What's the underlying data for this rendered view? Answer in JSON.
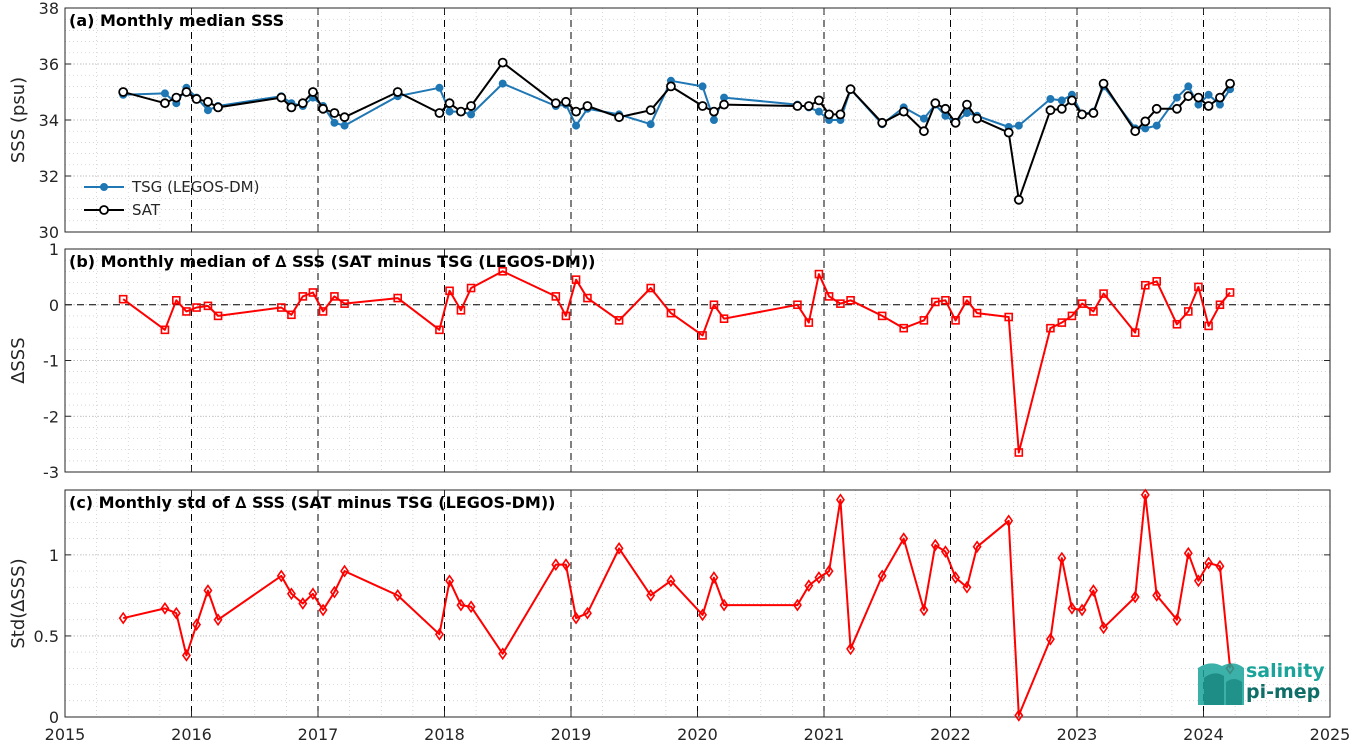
{
  "x_axis": {
    "ticks": [
      "2015",
      "2016",
      "2017",
      "2018",
      "2019",
      "2020",
      "2021",
      "2022",
      "2023",
      "2024",
      "2025"
    ],
    "xlim": [
      2015,
      2025
    ]
  },
  "logo": {
    "line1": "salinity",
    "line2": "pi-mep",
    "color": "#1aa39a"
  },
  "colors": {
    "tsg": "#1f77b4",
    "sat": "#000000",
    "delta": "#ff0000"
  },
  "chart_data": [
    {
      "id": "a",
      "type": "line",
      "title": "(a) Monthly median SSS",
      "ylabel": "SSS (psu)",
      "ylim": [
        30,
        38
      ],
      "yticks": [
        30,
        32,
        34,
        36,
        38
      ],
      "grid": true,
      "legend": {
        "position": "bottom-left",
        "entries": [
          "TSG (LEGOS-DM)",
          "SAT"
        ]
      },
      "series": [
        {
          "name": "TSG (LEGOS-DM)",
          "marker": "dot",
          "x": [
            2015.46,
            2015.79,
            2015.88,
            2015.96,
            2016.04,
            2016.13,
            2016.21,
            2016.71,
            2016.79,
            2016.88,
            2016.96,
            2017.04,
            2017.13,
            2017.21,
            2017.63,
            2017.96,
            2018.04,
            2018.13,
            2018.21,
            2018.46,
            2018.88,
            2018.96,
            2019.04,
            2019.13,
            2019.38,
            2019.63,
            2019.79,
            2020.04,
            2020.13,
            2020.21,
            2020.79,
            2020.88,
            2020.96,
            2021.04,
            2021.13,
            2021.21,
            2021.46,
            2021.63,
            2021.79,
            2021.88,
            2021.96,
            2022.04,
            2022.13,
            2022.21,
            2022.46,
            2022.54,
            2022.79,
            2022.88,
            2022.96,
            2023.04,
            2023.13,
            2023.21,
            2023.46,
            2023.54,
            2023.63,
            2023.79,
            2023.88,
            2023.96,
            2024.04,
            2024.13,
            2024.21
          ],
          "y": [
            34.9,
            34.95,
            34.6,
            35.15,
            34.8,
            34.35,
            34.5,
            34.85,
            34.6,
            34.5,
            34.8,
            34.5,
            33.9,
            33.8,
            34.85,
            35.15,
            34.3,
            34.3,
            34.2,
            35.3,
            34.5,
            34.55,
            33.8,
            34.4,
            34.2,
            33.85,
            35.4,
            35.2,
            34.0,
            34.8,
            34.55,
            34.45,
            34.3,
            34.0,
            34.0,
            35.1,
            33.85,
            34.45,
            34.05,
            34.55,
            34.15,
            33.9,
            34.25,
            34.15,
            33.75,
            33.8,
            34.75,
            34.7,
            34.9,
            34.2,
            34.3,
            35.2,
            33.7,
            33.7,
            33.8,
            34.8,
            35.2,
            34.55,
            34.9,
            34.55,
            35.1
          ]
        },
        {
          "name": "SAT",
          "marker": "circle",
          "x": [
            2015.46,
            2015.79,
            2015.88,
            2015.96,
            2016.04,
            2016.13,
            2016.21,
            2016.71,
            2016.79,
            2016.88,
            2016.96,
            2017.04,
            2017.13,
            2017.21,
            2017.63,
            2017.96,
            2018.04,
            2018.13,
            2018.21,
            2018.46,
            2018.88,
            2018.96,
            2019.04,
            2019.13,
            2019.38,
            2019.63,
            2019.79,
            2020.04,
            2020.13,
            2020.21,
            2020.79,
            2020.88,
            2020.96,
            2021.04,
            2021.13,
            2021.21,
            2021.46,
            2021.63,
            2021.79,
            2021.88,
            2021.96,
            2022.04,
            2022.13,
            2022.21,
            2022.46,
            2022.54,
            2022.79,
            2022.88,
            2022.96,
            2023.04,
            2023.13,
            2023.21,
            2023.46,
            2023.54,
            2023.63,
            2023.79,
            2023.88,
            2023.96,
            2024.04,
            2024.13,
            2024.21
          ],
          "y": [
            35.0,
            34.6,
            34.8,
            35.0,
            34.75,
            34.65,
            34.45,
            34.8,
            34.45,
            34.6,
            35.0,
            34.4,
            34.25,
            34.1,
            35.0,
            34.25,
            34.6,
            34.3,
            34.5,
            36.05,
            34.6,
            34.65,
            34.3,
            34.5,
            34.1,
            34.35,
            35.2,
            34.5,
            34.3,
            34.55,
            34.5,
            34.5,
            34.7,
            34.2,
            34.2,
            35.1,
            33.9,
            34.3,
            33.6,
            34.6,
            34.4,
            33.9,
            34.55,
            34.05,
            33.55,
            31.15,
            34.35,
            34.4,
            34.7,
            34.2,
            34.25,
            35.3,
            33.6,
            33.95,
            34.4,
            34.4,
            34.85,
            34.8,
            34.5,
            34.8,
            35.3
          ]
        }
      ]
    },
    {
      "id": "b",
      "type": "line",
      "title": "(b) Monthly median of ∆ SSS (SAT minus TSG (LEGOS-DM))",
      "ylabel": "∆SSS",
      "ylim": [
        -3,
        1
      ],
      "yticks": [
        -3,
        -2,
        -1,
        0,
        1
      ],
      "grid": true,
      "zero_line": true,
      "series": [
        {
          "marker": "square",
          "x": [
            2015.46,
            2015.79,
            2015.88,
            2015.96,
            2016.04,
            2016.13,
            2016.21,
            2016.71,
            2016.79,
            2016.88,
            2016.96,
            2017.04,
            2017.13,
            2017.21,
            2017.63,
            2017.96,
            2018.04,
            2018.13,
            2018.21,
            2018.46,
            2018.88,
            2018.96,
            2019.04,
            2019.13,
            2019.38,
            2019.63,
            2019.79,
            2020.04,
            2020.13,
            2020.21,
            2020.79,
            2020.88,
            2020.96,
            2021.04,
            2021.13,
            2021.21,
            2021.46,
            2021.63,
            2021.79,
            2021.88,
            2021.96,
            2022.04,
            2022.13,
            2022.21,
            2022.46,
            2022.54,
            2022.79,
            2022.88,
            2022.96,
            2023.04,
            2023.13,
            2023.21,
            2023.46,
            2023.54,
            2023.63,
            2023.79,
            2023.88,
            2023.96,
            2024.04,
            2024.13,
            2024.21
          ],
          "y": [
            0.1,
            -0.45,
            0.08,
            -0.12,
            -0.05,
            -0.02,
            -0.2,
            -0.05,
            -0.18,
            0.15,
            0.22,
            -0.12,
            0.15,
            0.02,
            0.12,
            -0.45,
            0.25,
            -0.1,
            0.3,
            0.6,
            0.15,
            -0.2,
            0.45,
            0.12,
            -0.28,
            0.3,
            -0.15,
            -0.55,
            0.0,
            -0.25,
            0.0,
            -0.32,
            0.55,
            0.15,
            0.02,
            0.08,
            -0.2,
            -0.42,
            -0.28,
            0.05,
            0.08,
            -0.28,
            0.08,
            -0.15,
            -0.22,
            -2.65,
            -0.42,
            -0.32,
            -0.2,
            0.02,
            -0.12,
            0.2,
            -0.5,
            0.35,
            0.42,
            -0.35,
            -0.12,
            0.32,
            -0.38,
            0.0,
            0.22
          ]
        }
      ]
    },
    {
      "id": "c",
      "type": "line",
      "title": "(c) Monthly std of ∆ SSS (SAT minus TSG (LEGOS-DM))",
      "ylabel": "Std(∆SSS)",
      "ylim": [
        0,
        1.4
      ],
      "yticks": [
        0,
        0.5,
        1
      ],
      "grid": true,
      "series": [
        {
          "marker": "diamond",
          "x": [
            2015.46,
            2015.79,
            2015.88,
            2015.96,
            2016.04,
            2016.13,
            2016.21,
            2016.71,
            2016.79,
            2016.88,
            2016.96,
            2017.04,
            2017.13,
            2017.21,
            2017.63,
            2017.96,
            2018.04,
            2018.13,
            2018.21,
            2018.46,
            2018.88,
            2018.96,
            2019.04,
            2019.13,
            2019.38,
            2019.63,
            2019.79,
            2020.04,
            2020.13,
            2020.21,
            2020.79,
            2020.88,
            2020.96,
            2021.04,
            2021.13,
            2021.21,
            2021.46,
            2021.63,
            2021.79,
            2021.88,
            2021.96,
            2022.04,
            2022.13,
            2022.21,
            2022.46,
            2022.54,
            2022.79,
            2022.88,
            2022.96,
            2023.04,
            2023.13,
            2023.21,
            2023.46,
            2023.54,
            2023.63,
            2023.79,
            2023.88,
            2023.96,
            2024.04,
            2024.13,
            2024.21
          ],
          "y": [
            0.61,
            0.67,
            0.64,
            0.38,
            0.57,
            0.78,
            0.6,
            0.87,
            0.76,
            0.7,
            0.76,
            0.66,
            0.77,
            0.9,
            0.75,
            0.51,
            0.84,
            0.69,
            0.68,
            0.39,
            0.94,
            0.94,
            0.61,
            0.64,
            1.04,
            0.75,
            0.84,
            0.63,
            0.86,
            0.69,
            0.69,
            0.81,
            0.86,
            0.9,
            1.34,
            0.42,
            0.87,
            1.1,
            0.66,
            1.06,
            1.02,
            0.86,
            0.8,
            1.05,
            1.21,
            0.01,
            0.48,
            0.98,
            0.67,
            0.66,
            0.78,
            0.55,
            0.74,
            1.37,
            0.75,
            0.6,
            1.01,
            0.84,
            0.95,
            0.93,
            0.3
          ]
        }
      ]
    }
  ]
}
